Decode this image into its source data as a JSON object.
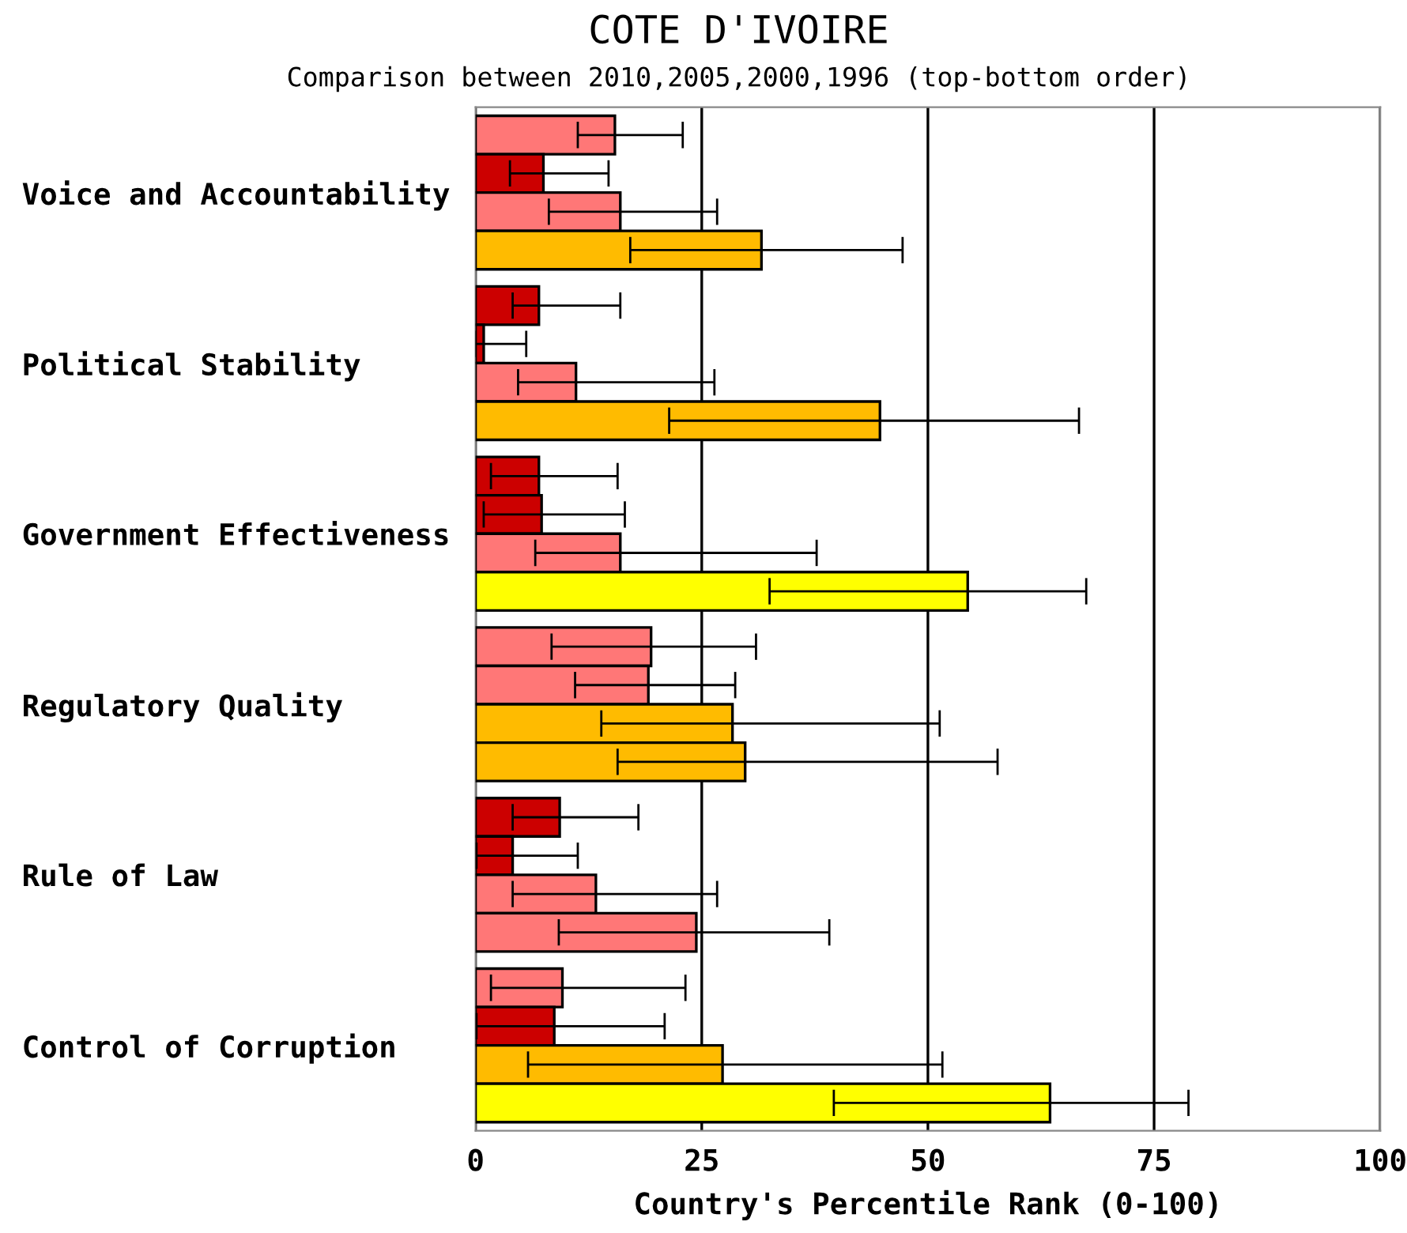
{
  "chart_data": {
    "type": "bar",
    "orientation": "horizontal",
    "title": "COTE D'IVOIRE",
    "subtitle": "Comparison between 2010,2005,2000,1996 (top-bottom order)",
    "xlabel": "Country's Percentile Rank (0-100)",
    "categories": [
      "Voice and Accountability",
      "Political Stability",
      "Government Effectiveness",
      "Regulatory Quality",
      "Rule of Law",
      "Control of Corruption"
    ],
    "series": [
      {
        "values": [
          15.4,
          7.0,
          7.0,
          19.4,
          9.3,
          9.6
        ],
        "colors": [
          "#ff7777",
          "#cc0000",
          "#cc0000",
          "#ff7777",
          "#cc0000",
          "#ff7777"
        ],
        "errors": [
          [
            11.3,
            22.9
          ],
          [
            4.1,
            16.0
          ],
          [
            1.7,
            15.7
          ],
          [
            8.4,
            31.0
          ],
          [
            4.1,
            18.0
          ],
          [
            1.7,
            23.2
          ]
        ]
      },
      {
        "values": [
          7.5,
          0.9,
          7.3,
          19.1,
          4.1,
          8.7
        ],
        "colors": [
          "#cc0000",
          "#cc0000",
          "#cc0000",
          "#ff7777",
          "#cc0000",
          "#cc0000"
        ],
        "errors": [
          [
            3.8,
            14.7
          ],
          [
            0,
            5.6
          ],
          [
            0.9,
            16.5
          ],
          [
            11.0,
            28.7
          ],
          [
            0.1,
            11.3
          ],
          [
            0.1,
            20.9
          ]
        ]
      },
      {
        "values": [
          16.0,
          11.1,
          16.0,
          28.4,
          13.3,
          27.3
        ],
        "colors": [
          "#ff7777",
          "#ff7777",
          "#ff7777",
          "#ffbb00",
          "#ff7777",
          "#ffbb00"
        ],
        "errors": [
          [
            8.1,
            26.7
          ],
          [
            4.7,
            26.4
          ],
          [
            6.6,
            37.7
          ],
          [
            13.9,
            51.3
          ],
          [
            4.1,
            26.7
          ],
          [
            5.8,
            51.6
          ]
        ]
      },
      {
        "values": [
          31.6,
          44.7,
          54.4,
          29.8,
          24.4,
          63.5
        ],
        "colors": [
          "#ffbb00",
          "#ffbb00",
          "#ffff00",
          "#ffbb00",
          "#ff7777",
          "#ffff00"
        ],
        "errors": [
          [
            17.1,
            47.2
          ],
          [
            21.4,
            66.7
          ],
          [
            32.5,
            67.5
          ],
          [
            15.7,
            57.7
          ],
          [
            9.2,
            39.1
          ],
          [
            39.6,
            78.8
          ]
        ]
      }
    ],
    "xlim": [
      0,
      100
    ],
    "xticks": [
      0,
      25,
      50,
      75,
      100
    ],
    "grid": "x",
    "legend": false
  }
}
